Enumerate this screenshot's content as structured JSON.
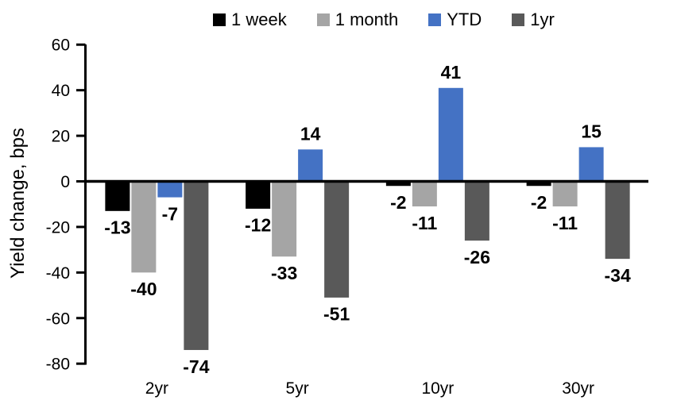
{
  "chart_data": {
    "type": "bar",
    "title": "",
    "ylabel": "Yield change, bps",
    "xlabel": "",
    "categories": [
      "2yr",
      "5yr",
      "10yr",
      "30yr"
    ],
    "series": [
      {
        "name": "1 week",
        "color": "#000000",
        "values": [
          -13,
          -12,
          -2,
          -2
        ]
      },
      {
        "name": "1 month",
        "color": "#A5A5A5",
        "values": [
          -40,
          -33,
          -11,
          -11
        ]
      },
      {
        "name": "YTD",
        "color": "#4472C4",
        "values": [
          -7,
          14,
          41,
          15
        ]
      },
      {
        "name": "1yr",
        "color": "#595959",
        "values": [
          -74,
          -51,
          -26,
          -34
        ]
      }
    ],
    "ylim": [
      -80,
      60
    ],
    "ytick_step": 20,
    "yticks": [
      60,
      40,
      20,
      0,
      -20,
      -40,
      -60,
      -80
    ],
    "grid": false,
    "data_labels": true,
    "legend_position": "top",
    "axis_color": "#000000",
    "label_color": "#000000"
  }
}
